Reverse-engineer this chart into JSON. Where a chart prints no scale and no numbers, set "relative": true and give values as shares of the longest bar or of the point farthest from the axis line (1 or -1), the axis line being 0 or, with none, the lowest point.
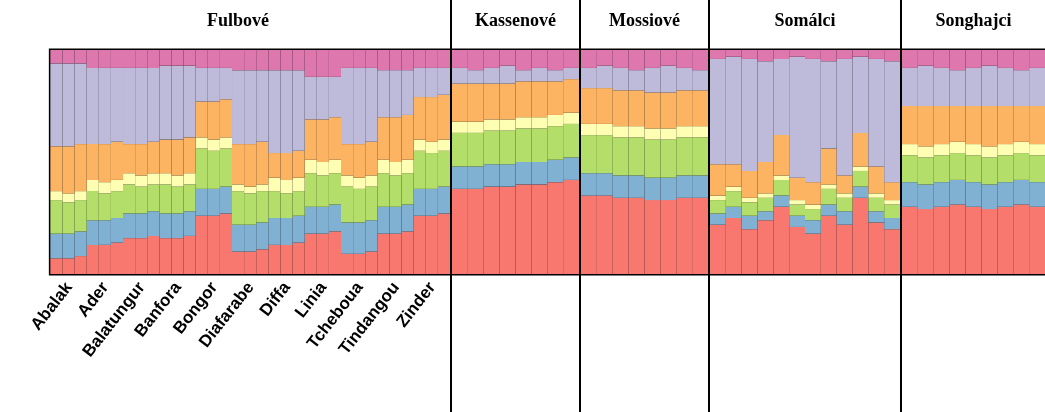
{
  "chart_data": [
    {
      "type": "bar",
      "stacked": true,
      "relative": true,
      "title": "Fulbové",
      "tick_labels": "x",
      "categories": [
        null,
        "Abalak",
        null,
        null,
        "Ader",
        null,
        null,
        "Balatungur",
        null,
        null,
        "Banfora",
        null,
        null,
        "Bongor",
        null,
        null,
        "Diafarabe",
        null,
        null,
        "Diffa",
        null,
        null,
        "Linia",
        null,
        null,
        "Tcheboua",
        null,
        null,
        "Tindangou",
        null,
        null,
        "Zinder",
        null
      ],
      "series": [
        {
          "color": "#f8786f",
          "values": [
            0.07,
            0.07,
            0.08,
            0.13,
            0.13,
            0.14,
            0.16,
            0.16,
            0.17,
            0.16,
            0.16,
            0.17,
            0.26,
            0.26,
            0.27,
            0.1,
            0.1,
            0.11,
            0.13,
            0.13,
            0.14,
            0.18,
            0.18,
            0.19,
            0.09,
            0.09,
            0.1,
            0.18,
            0.18,
            0.19,
            0.26,
            0.26,
            0.27
          ]
        },
        {
          "color": "#80b1d3",
          "values": [
            0.11,
            0.11,
            0.11,
            0.11,
            0.11,
            0.11,
            0.11,
            0.11,
            0.11,
            0.11,
            0.11,
            0.11,
            0.12,
            0.12,
            0.12,
            0.12,
            0.12,
            0.12,
            0.12,
            0.12,
            0.12,
            0.12,
            0.12,
            0.12,
            0.14,
            0.14,
            0.14,
            0.12,
            0.12,
            0.12,
            0.12,
            0.12,
            0.12
          ]
        },
        {
          "color": "#b3de69",
          "values": [
            0.15,
            0.14,
            0.14,
            0.13,
            0.12,
            0.12,
            0.13,
            0.12,
            0.12,
            0.13,
            0.12,
            0.12,
            0.18,
            0.17,
            0.17,
            0.15,
            0.14,
            0.14,
            0.12,
            0.11,
            0.11,
            0.15,
            0.14,
            0.14,
            0.16,
            0.15,
            0.15,
            0.15,
            0.14,
            0.14,
            0.17,
            0.16,
            0.16
          ]
        },
        {
          "color": "#ffffb3",
          "values": [
            0.04,
            0.04,
            0.04,
            0.05,
            0.05,
            0.05,
            0.05,
            0.05,
            0.05,
            0.05,
            0.05,
            0.05,
            0.05,
            0.05,
            0.05,
            0.03,
            0.03,
            0.03,
            0.06,
            0.06,
            0.06,
            0.06,
            0.06,
            0.06,
            0.05,
            0.05,
            0.05,
            0.06,
            0.06,
            0.06,
            0.05,
            0.05,
            0.05
          ]
        },
        {
          "color": "#fdb462",
          "values": [
            0.2,
            0.21,
            0.21,
            0.16,
            0.17,
            0.17,
            0.13,
            0.14,
            0.14,
            0.15,
            0.16,
            0.16,
            0.16,
            0.17,
            0.17,
            0.18,
            0.19,
            0.19,
            0.11,
            0.12,
            0.12,
            0.18,
            0.19,
            0.19,
            0.14,
            0.15,
            0.15,
            0.19,
            0.2,
            0.2,
            0.19,
            0.2,
            0.2
          ]
        },
        {
          "color": "#bebada",
          "values": [
            0.37,
            0.37,
            0.36,
            0.34,
            0.34,
            0.33,
            0.34,
            0.34,
            0.33,
            0.33,
            0.33,
            0.32,
            0.15,
            0.15,
            0.14,
            0.33,
            0.33,
            0.32,
            0.37,
            0.37,
            0.36,
            0.19,
            0.19,
            0.18,
            0.34,
            0.34,
            0.33,
            0.21,
            0.21,
            0.2,
            0.13,
            0.13,
            0.12
          ]
        },
        {
          "color": "#de77ae",
          "values": [
            0.06,
            0.06,
            0.06,
            0.08,
            0.08,
            0.08,
            0.08,
            0.08,
            0.08,
            0.07,
            0.07,
            0.07,
            0.08,
            0.08,
            0.08,
            0.09,
            0.09,
            0.09,
            0.09,
            0.09,
            0.09,
            0.12,
            0.12,
            0.12,
            0.08,
            0.08,
            0.08,
            0.09,
            0.09,
            0.09,
            0.08,
            0.08,
            0.08
          ]
        }
      ]
    },
    {
      "type": "bar",
      "stacked": true,
      "relative": true,
      "title": "Kassenové",
      "tick_labels": false,
      "categories": [
        null,
        null,
        null,
        null,
        null,
        null,
        null,
        null
      ],
      "series": [
        {
          "color": "#f8786f",
          "values": [
            0.38,
            0.38,
            0.39,
            0.39,
            0.4,
            0.4,
            0.41,
            0.42
          ]
        },
        {
          "color": "#80b1d3",
          "values": [
            0.1,
            0.1,
            0.1,
            0.1,
            0.1,
            0.1,
            0.1,
            0.1
          ]
        },
        {
          "color": "#b3de69",
          "values": [
            0.15,
            0.15,
            0.15,
            0.15,
            0.15,
            0.15,
            0.15,
            0.15
          ]
        },
        {
          "color": "#ffffb3",
          "values": [
            0.05,
            0.05,
            0.05,
            0.05,
            0.05,
            0.05,
            0.05,
            0.05
          ]
        },
        {
          "color": "#fdb462",
          "values": [
            0.17,
            0.17,
            0.16,
            0.16,
            0.16,
            0.16,
            0.15,
            0.15
          ]
        },
        {
          "color": "#bebada",
          "values": [
            0.07,
            0.06,
            0.07,
            0.08,
            0.05,
            0.06,
            0.05,
            0.05
          ]
        },
        {
          "color": "#de77ae",
          "values": [
            0.08,
            0.09,
            0.08,
            0.07,
            0.09,
            0.08,
            0.09,
            0.08
          ]
        }
      ]
    },
    {
      "type": "bar",
      "stacked": true,
      "relative": true,
      "title": "Mossiové",
      "tick_labels": false,
      "categories": [
        null,
        null,
        null,
        null,
        null,
        null,
        null,
        null
      ],
      "series": [
        {
          "color": "#f8786f",
          "values": [
            0.35,
            0.35,
            0.34,
            0.34,
            0.33,
            0.33,
            0.34,
            0.34
          ]
        },
        {
          "color": "#80b1d3",
          "values": [
            0.1,
            0.1,
            0.1,
            0.1,
            0.1,
            0.1,
            0.1,
            0.1
          ]
        },
        {
          "color": "#b3de69",
          "values": [
            0.17,
            0.17,
            0.17,
            0.17,
            0.17,
            0.17,
            0.17,
            0.17
          ]
        },
        {
          "color": "#ffffb3",
          "values": [
            0.05,
            0.05,
            0.05,
            0.05,
            0.05,
            0.05,
            0.05,
            0.05
          ]
        },
        {
          "color": "#fdb462",
          "values": [
            0.16,
            0.16,
            0.16,
            0.16,
            0.16,
            0.16,
            0.16,
            0.16
          ]
        },
        {
          "color": "#bebada",
          "values": [
            0.09,
            0.1,
            0.1,
            0.09,
            0.11,
            0.12,
            0.1,
            0.09
          ]
        },
        {
          "color": "#de77ae",
          "values": [
            0.08,
            0.07,
            0.08,
            0.09,
            0.08,
            0.07,
            0.08,
            0.09
          ]
        }
      ]
    },
    {
      "type": "bar",
      "stacked": true,
      "relative": true,
      "title": "Somálci",
      "tick_labels": false,
      "categories": [
        null,
        null,
        null,
        null,
        null,
        null,
        null,
        null,
        null,
        null,
        null,
        null
      ],
      "series": [
        {
          "color": "#f8786f",
          "values": [
            0.22,
            0.25,
            0.2,
            0.24,
            0.3,
            0.21,
            0.18,
            0.26,
            0.22,
            0.34,
            0.23,
            0.2
          ]
        },
        {
          "color": "#80b1d3",
          "values": [
            0.05,
            0.05,
            0.06,
            0.04,
            0.05,
            0.05,
            0.06,
            0.05,
            0.06,
            0.05,
            0.05,
            0.05
          ]
        },
        {
          "color": "#b3de69",
          "values": [
            0.06,
            0.07,
            0.06,
            0.06,
            0.07,
            0.05,
            0.05,
            0.07,
            0.06,
            0.07,
            0.06,
            0.06
          ]
        },
        {
          "color": "#ffffb3",
          "values": [
            0.02,
            0.02,
            0.02,
            0.02,
            0.02,
            0.02,
            0.02,
            0.02,
            0.02,
            0.02,
            0.02,
            0.02
          ]
        },
        {
          "color": "#fdb462",
          "values": [
            0.14,
            0.1,
            0.12,
            0.14,
            0.18,
            0.1,
            0.1,
            0.16,
            0.08,
            0.15,
            0.12,
            0.08
          ]
        },
        {
          "color": "#bebada",
          "values": [
            0.47,
            0.48,
            0.5,
            0.45,
            0.34,
            0.54,
            0.55,
            0.39,
            0.52,
            0.34,
            0.48,
            0.54
          ]
        },
        {
          "color": "#de77ae",
          "values": [
            0.04,
            0.03,
            0.04,
            0.05,
            0.04,
            0.03,
            0.04,
            0.05,
            0.04,
            0.03,
            0.04,
            0.05
          ]
        }
      ]
    },
    {
      "type": "bar",
      "stacked": true,
      "relative": true,
      "title": "Songhajci",
      "tick_labels": false,
      "categories": [
        null,
        null,
        null,
        null,
        null,
        null,
        null,
        null,
        null
      ],
      "series": [
        {
          "color": "#f8786f",
          "values": [
            0.3,
            0.29,
            0.3,
            0.31,
            0.3,
            0.29,
            0.3,
            0.31,
            0.3
          ]
        },
        {
          "color": "#80b1d3",
          "values": [
            0.11,
            0.11,
            0.11,
            0.11,
            0.11,
            0.11,
            0.11,
            0.11,
            0.11
          ]
        },
        {
          "color": "#b3de69",
          "values": [
            0.12,
            0.12,
            0.12,
            0.12,
            0.12,
            0.12,
            0.12,
            0.12,
            0.12
          ]
        },
        {
          "color": "#ffffb3",
          "values": [
            0.05,
            0.05,
            0.05,
            0.05,
            0.05,
            0.05,
            0.05,
            0.05,
            0.05
          ]
        },
        {
          "color": "#fdb462",
          "values": [
            0.17,
            0.18,
            0.17,
            0.16,
            0.17,
            0.18,
            0.17,
            0.16,
            0.17
          ]
        },
        {
          "color": "#bebada",
          "values": [
            0.17,
            0.18,
            0.17,
            0.16,
            0.17,
            0.18,
            0.17,
            0.16,
            0.17
          ]
        },
        {
          "color": "#de77ae",
          "values": [
            0.08,
            0.07,
            0.08,
            0.09,
            0.08,
            0.07,
            0.08,
            0.09,
            0.08
          ]
        }
      ]
    }
  ]
}
